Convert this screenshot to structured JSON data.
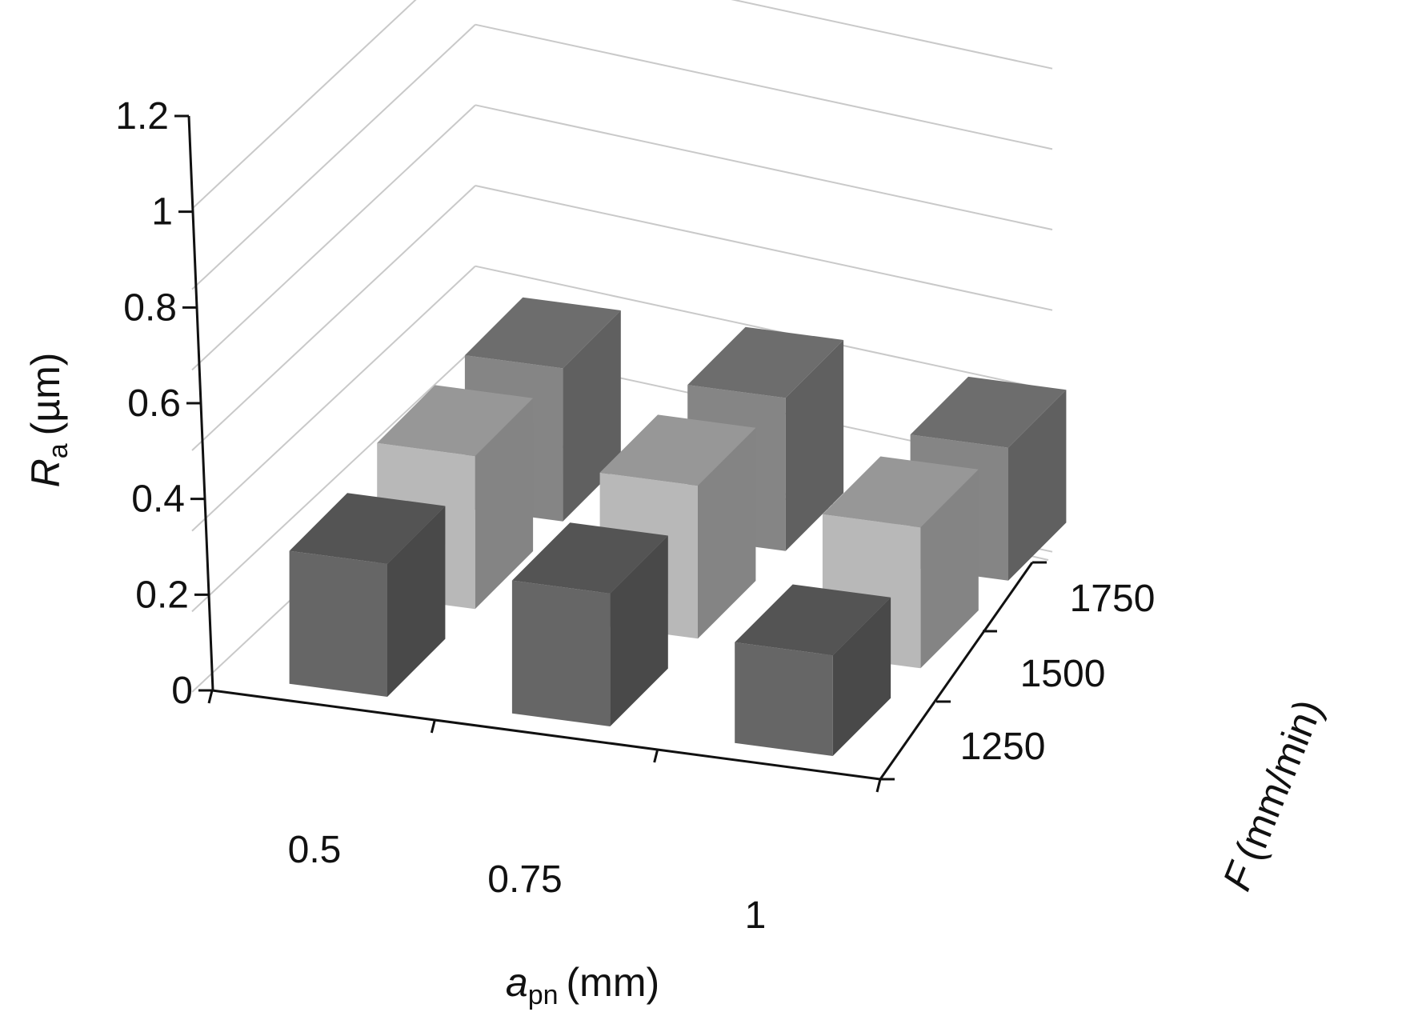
{
  "chart_data": {
    "type": "bar",
    "subtype": "3d-bar",
    "title": "",
    "categories": [
      "0.5",
      "0.75",
      "1"
    ],
    "series": [
      {
        "name": "1250",
        "color": "#666666",
        "values": [
          0.33,
          0.33,
          0.25
        ]
      },
      {
        "name": "1500",
        "color": "#b8b8b8",
        "values": [
          0.38,
          0.38,
          0.35
        ]
      },
      {
        "name": "1750",
        "color": "#858585",
        "values": [
          0.38,
          0.38,
          0.33
        ]
      }
    ],
    "ylim": [
      0,
      1.2
    ],
    "yticks": [
      "0",
      "0.2",
      "0.4",
      "0.6",
      "0.8",
      "1",
      "1.2"
    ],
    "ylabel": {
      "symbol": "R",
      "subscript": "a",
      "unit": "(µm)"
    },
    "xlabel": {
      "symbol": "a",
      "subscript": "pn",
      "unit": "(mm)"
    },
    "zlabel": {
      "symbol": "F",
      "unit": "(mm/min)"
    },
    "zcategories": [
      "1250",
      "1500",
      "1750"
    ],
    "grid": true,
    "legend": "none"
  }
}
